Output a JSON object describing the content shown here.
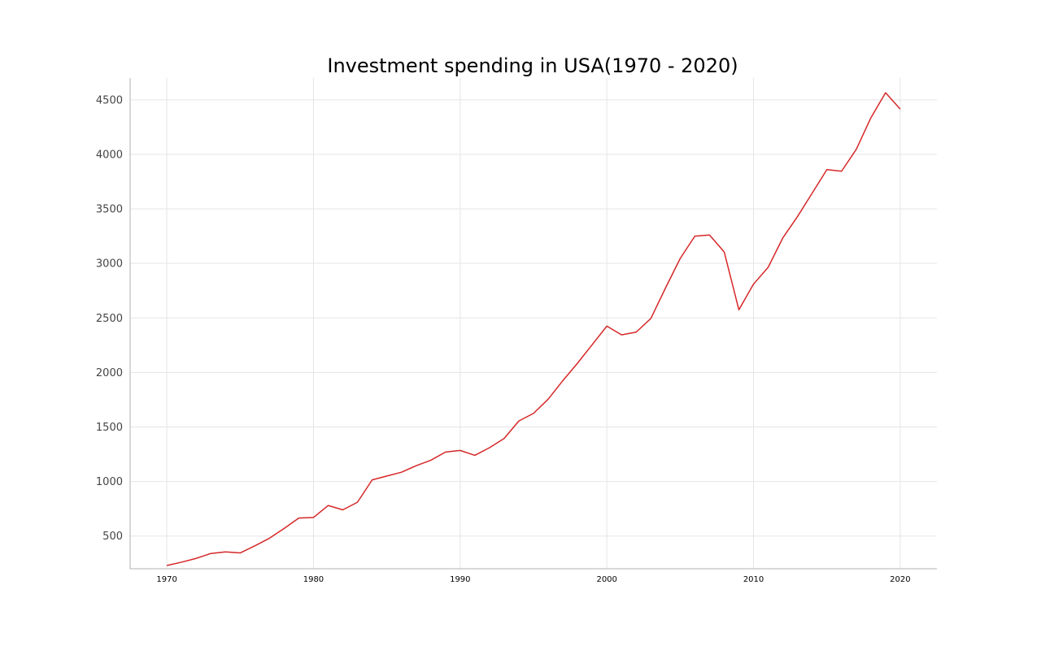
{
  "chart_data": {
    "type": "line",
    "title": "Investment spending in USA(1970 - 2020)",
    "xlabel": "",
    "ylabel": "",
    "xlim": [
      1967.5,
      2022.5
    ],
    "ylim": [
      200,
      4700
    ],
    "x_ticks": [
      1970,
      1980,
      1990,
      2000,
      2010,
      2020
    ],
    "y_ticks": [
      500,
      1000,
      1500,
      2000,
      2500,
      3000,
      3500,
      4000,
      4500
    ],
    "grid": true,
    "legend": "none",
    "line_color": "#d62728",
    "x": [
      1970,
      1971,
      1972,
      1973,
      1974,
      1975,
      1976,
      1977,
      1978,
      1979,
      1980,
      1981,
      1982,
      1983,
      1984,
      1985,
      1986,
      1987,
      1988,
      1989,
      1990,
      1991,
      1992,
      1993,
      1994,
      1995,
      1996,
      1997,
      1998,
      1999,
      2000,
      2001,
      2002,
      2003,
      2004,
      2005,
      2006,
      2007,
      2008,
      2009,
      2010,
      2011,
      2012,
      2013,
      2014,
      2015,
      2016,
      2017,
      2018,
      2019,
      2020
    ],
    "y": [
      230,
      260,
      295,
      340,
      355,
      345,
      410,
      480,
      570,
      665,
      670,
      780,
      740,
      810,
      1015,
      1050,
      1085,
      1145,
      1195,
      1270,
      1285,
      1240,
      1310,
      1395,
      1555,
      1625,
      1755,
      1925,
      2085,
      2255,
      2425,
      2345,
      2370,
      2495,
      2775,
      3045,
      3250,
      3260,
      3105,
      2575,
      2810,
      2965,
      3235,
      3430,
      3645,
      3860,
      3845,
      4045,
      4335,
      4565,
      4415
    ]
  }
}
